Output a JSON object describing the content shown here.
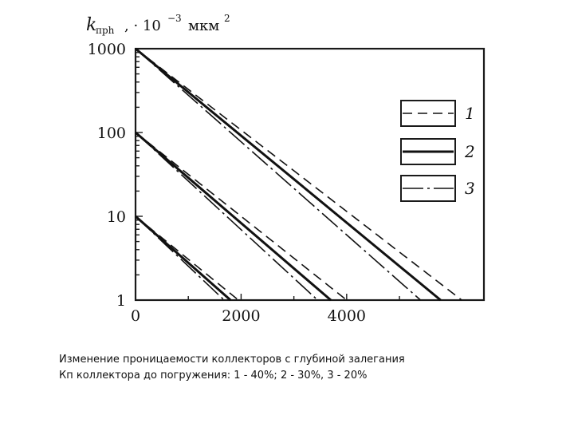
{
  "chart_data": {
    "type": "line",
    "ylabel": {
      "symbol": "k",
      "subscript": "прh",
      "rest": ", · 10",
      "exponent": "−3",
      "unit": "мкм",
      "unit_exponent": "2"
    },
    "y_scale": "log",
    "ylim": [
      1,
      1000
    ],
    "y_ticks": [
      "1000",
      "100",
      "10",
      "1"
    ],
    "xlim": [
      0,
      6600
    ],
    "x_ticks": [
      "0",
      "2000",
      "4000"
    ],
    "legend_position": "right",
    "legend": [
      {
        "label": "1",
        "style": "dashed"
      },
      {
        "label": "2",
        "style": "solid-thick"
      },
      {
        "label": "3",
        "style": "dash-dot"
      }
    ],
    "groups": [
      {
        "start_permeability": 1000,
        "series": [
          {
            "legend": "1",
            "x": [
              0,
              6180
            ],
            "y": [
              1000,
              1
            ]
          },
          {
            "legend": "2",
            "x": [
              0,
              5780
            ],
            "y": [
              1000,
              1
            ]
          },
          {
            "legend": "3",
            "x": [
              0,
              5400
            ],
            "y": [
              1000,
              1
            ]
          }
        ]
      },
      {
        "start_permeability": 100,
        "series": [
          {
            "legend": "1",
            "x": [
              0,
              4000
            ],
            "y": [
              100,
              1
            ]
          },
          {
            "legend": "2",
            "x": [
              0,
              3700
            ],
            "y": [
              100,
              1
            ]
          },
          {
            "legend": "3",
            "x": [
              0,
              3450
            ],
            "y": [
              100,
              1
            ]
          }
        ]
      },
      {
        "start_permeability": 10,
        "series": [
          {
            "legend": "1",
            "x": [
              0,
              1950
            ],
            "y": [
              10,
              1
            ]
          },
          {
            "legend": "2",
            "x": [
              0,
              1800
            ],
            "y": [
              10,
              1
            ]
          },
          {
            "legend": "3",
            "x": [
              0,
              1680
            ],
            "y": [
              10,
              1
            ]
          }
        ]
      }
    ]
  },
  "caption": {
    "line1": "Изменение проницаемости коллекторов с глубиной залегания",
    "line2": "Кп коллектора до погружения: 1 - 40%; 2 - 30%, 3 - 20%"
  }
}
